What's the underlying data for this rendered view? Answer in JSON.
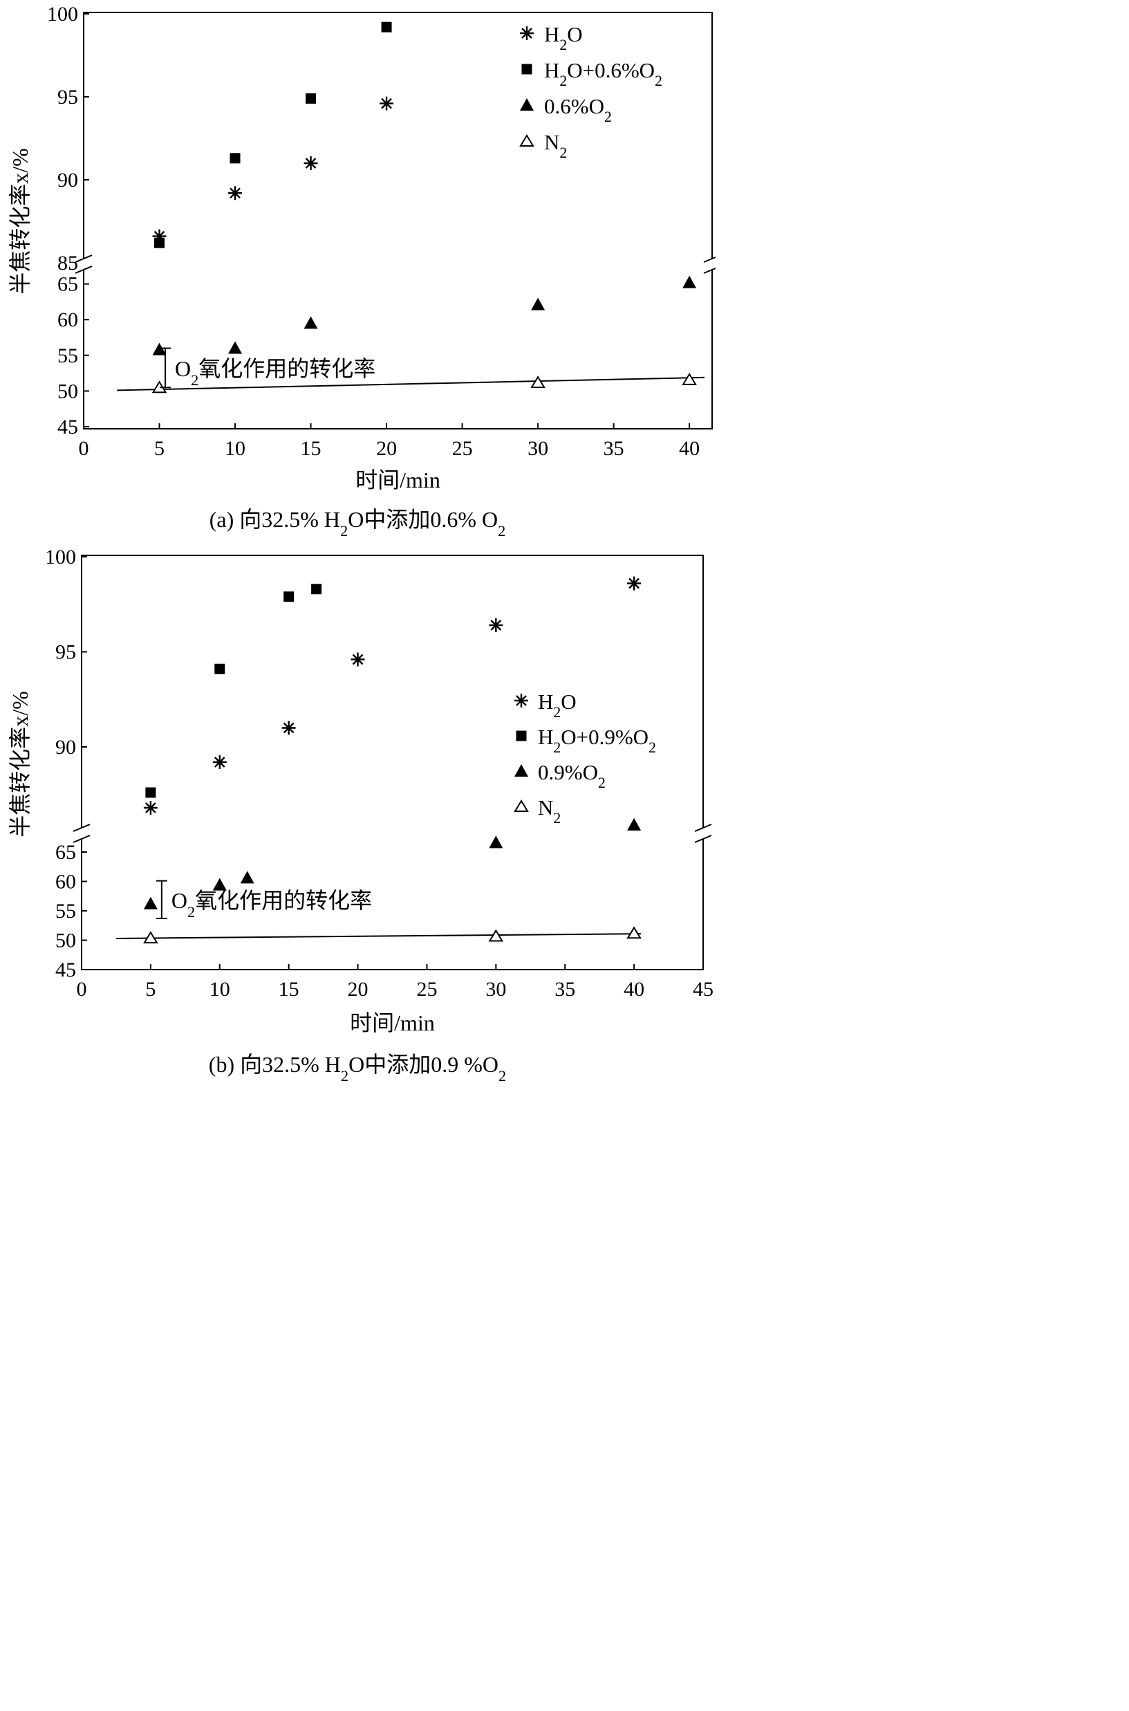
{
  "chart_data": [
    {
      "type": "scatter",
      "panel": "a",
      "caption": {
        "pre": "(a) 向32.5% H",
        "s1": "2",
        "mid": "O中添加0.6% O",
        "s2": "2",
        "post": ""
      },
      "xlabel": "时间/min",
      "ylabel": "半焦转化率x/%",
      "xlim": [
        0,
        41.5
      ],
      "xticks": [
        0,
        5,
        10,
        15,
        20,
        25,
        30,
        35,
        40
      ],
      "ylim_upper": [
        85,
        100
      ],
      "ylim_lower": [
        45,
        67
      ],
      "yticks_upper": [
        85,
        90,
        95,
        100
      ],
      "yticks_lower": [
        45,
        50,
        55,
        60,
        65
      ],
      "broken_y_axis": true,
      "legend": [
        "H2O",
        "H2O+0.6%O2",
        "0.6%O2",
        "N2"
      ],
      "legend_position": "top-right",
      "legend_text": [
        {
          "main": "H",
          "sub": "2",
          "tail": "O"
        },
        {
          "main": "H",
          "sub": "2",
          "tail": "O+0.6%O",
          "sub2": "2"
        },
        {
          "main": "0.6%O",
          "sub": "2",
          "tail": ""
        },
        {
          "main": "N",
          "sub": "2",
          "tail": ""
        }
      ],
      "series": [
        {
          "name": "H2O",
          "marker": "asterisk",
          "x": [
            5,
            10,
            15,
            20
          ],
          "y": [
            86.6,
            89.2,
            91.0,
            94.6
          ]
        },
        {
          "name": "H2O+0.6%O2",
          "marker": "square",
          "x": [
            5,
            10,
            15,
            20
          ],
          "y": [
            86.2,
            91.3,
            94.9,
            99.2
          ]
        },
        {
          "name": "0.6%O2",
          "marker": "triangle-filled",
          "x": [
            5,
            10,
            15,
            30,
            40
          ],
          "y": [
            55.8,
            56.0,
            59.5,
            62.1,
            65.2
          ]
        },
        {
          "name": "N2",
          "marker": "triangle-open",
          "x": [
            5,
            30,
            40
          ],
          "y": [
            50.5,
            51.2,
            51.6
          ]
        }
      ],
      "trendline": {
        "x": [
          2.2,
          41
        ],
        "y": [
          50.1,
          51.9
        ]
      },
      "annotation": {
        "main": "O",
        "sub": "2",
        "tail": "氧化作用的转化率",
        "x": 6.3,
        "y_from": 50.5,
        "y_to": 56.0
      }
    },
    {
      "type": "scatter",
      "panel": "b",
      "caption": {
        "pre": "(b) 向32.5% H",
        "s1": "2",
        "mid": "O中添加0.9 %O",
        "s2": "2",
        "post": ""
      },
      "xlabel": "时间/min",
      "ylabel": "半焦转化率x/%",
      "xlim": [
        0,
        45
      ],
      "xticks": [
        0,
        5,
        10,
        15,
        20,
        25,
        30,
        35,
        40,
        45
      ],
      "ylim_upper": [
        86,
        100
      ],
      "ylim_lower": [
        45,
        69
      ],
      "yticks_upper": [
        90,
        95,
        100
      ],
      "yticks_lower": [
        45,
        50,
        55,
        60,
        65
      ],
      "broken_y_axis": true,
      "legend": [
        "H2O",
        "H2O+0.9%O2",
        "0.9%O2",
        "N2"
      ],
      "legend_position": "right",
      "legend_text": [
        {
          "main": "H",
          "sub": "2",
          "tail": "O"
        },
        {
          "main": "H",
          "sub": "2",
          "tail": "O+0.9%O",
          "sub2": "2"
        },
        {
          "main": "0.9%O",
          "sub": "2",
          "tail": ""
        },
        {
          "main": "N",
          "sub": "2",
          "tail": ""
        }
      ],
      "series": [
        {
          "name": "H2O",
          "marker": "asterisk",
          "x": [
            5,
            10,
            15,
            20,
            30,
            40
          ],
          "y": [
            86.8,
            89.2,
            91.0,
            94.6,
            96.4,
            98.6
          ]
        },
        {
          "name": "H2O+0.9%O2",
          "marker": "square",
          "x": [
            5,
            10,
            15,
            17
          ],
          "y": [
            87.6,
            94.1,
            97.9,
            98.3
          ]
        },
        {
          "name": "0.9%O2",
          "marker": "triangle-filled",
          "x": [
            5,
            10,
            12,
            30,
            40
          ],
          "y": [
            56.2,
            59.4,
            60.6,
            66.6,
            69.6
          ]
        },
        {
          "name": "N2",
          "marker": "triangle-open",
          "x": [
            5,
            30,
            40
          ],
          "y": [
            50.4,
            50.7,
            51.2
          ]
        }
      ],
      "trendline": {
        "x": [
          2.5,
          40.5
        ],
        "y": [
          50.3,
          51.1
        ]
      },
      "annotation": {
        "main": "O",
        "sub": "2",
        "tail": "氧化作用的转化率",
        "x": 6.8,
        "y_from": 53.7,
        "y_to": 60.1
      }
    }
  ]
}
